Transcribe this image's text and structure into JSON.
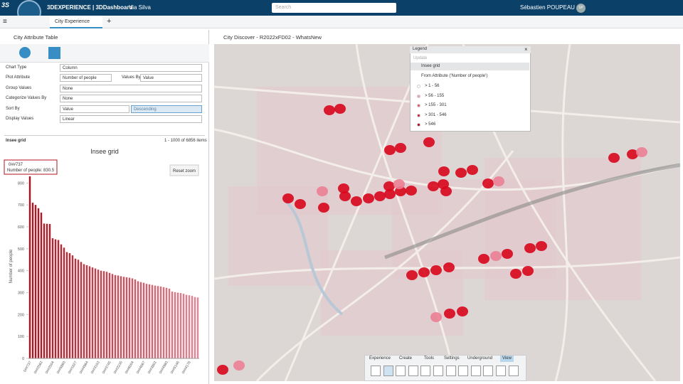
{
  "header": {
    "brand": "3DEXPERIENCE | 3DDashboard",
    "dashboard": "Via Silva",
    "search_placeholder": "Search",
    "user": "Sébastien POUPEAU",
    "avatar": "SP"
  },
  "tabs": [
    "City Experience"
  ],
  "left_panel": {
    "title": "City Attribute Table",
    "form": [
      {
        "label": "Chart Type",
        "value": "Column"
      },
      {
        "label": "Plot Attribute",
        "value": "Number of people",
        "extra_label": "Values By",
        "extra_value": "Value"
      },
      {
        "label": "Group Values",
        "value": "None"
      },
      {
        "label": "Categorize Values By",
        "value": "None"
      },
      {
        "label": "Sort By",
        "value": "Value",
        "extra_value": "Descending"
      },
      {
        "label": "Display Values",
        "value": "Linear"
      }
    ],
    "table_name": "Insee grid",
    "item_count": "1 - 1000 of 6856 items",
    "chart": {
      "type": "bar",
      "title": "Insee grid",
      "y_label": "Number of people",
      "tooltip": {
        "category": "0##737",
        "text": "Number of people: 830.5"
      },
      "reset_zoom": "Reset zoom",
      "categories": [
        "0##737",
        null,
        null,
        null,
        "0##2562",
        null,
        null,
        null,
        "0##2504",
        null,
        null,
        null,
        "0##5893",
        null,
        null,
        null,
        "0##1627",
        null,
        null,
        null,
        "0##4964",
        null,
        null,
        null,
        "0##3153",
        null,
        null,
        null,
        "0##3745",
        null,
        null,
        null,
        "0##2235",
        null,
        null,
        null,
        "0##6004",
        null,
        null,
        null,
        "0##4667",
        null,
        null,
        null,
        "0##3802",
        null,
        null,
        null,
        "0##4983",
        null,
        null,
        null,
        "0##5146",
        null,
        null,
        null,
        "0##4176",
        null,
        null,
        null
      ],
      "values": [
        830.5,
        710,
        700,
        685,
        665,
        615,
        614,
        613,
        548,
        543,
        540,
        520,
        505,
        485,
        480,
        470,
        455,
        450,
        440,
        430,
        425,
        420,
        415,
        410,
        405,
        400,
        398,
        395,
        390,
        385,
        380,
        378,
        375,
        372,
        370,
        368,
        365,
        360,
        352,
        348,
        345,
        340,
        338,
        335,
        332,
        330,
        328,
        325,
        322,
        318,
        305,
        302,
        300,
        298,
        295,
        290,
        288,
        285,
        280,
        278
      ],
      "ylim": [
        0,
        840
      ],
      "yticks": [
        0,
        100,
        200,
        300,
        400,
        500,
        600,
        700,
        800
      ],
      "color_start": "#b0101c",
      "color_end": "#e58595"
    }
  },
  "right_panel": {
    "title": "City Discover - R2022xFD02 - WhatsNew",
    "legend": {
      "title": "Legend",
      "update": "Update",
      "layer": "Insee grid",
      "attribute": "From Attribute ('Number of people')",
      "classes": [
        {
          "label": "> 1 - 56",
          "color": "#ffffff"
        },
        {
          "label": "> 56 - 155",
          "color": "#f2a0b0"
        },
        {
          "label": "> 155 - 301",
          "color": "#e45a6e"
        },
        {
          "label": "> 301 - 546",
          "color": "#cc2233"
        },
        {
          "label": "> 546",
          "color": "#b00010"
        }
      ]
    },
    "toolbar_tabs": [
      "Experience",
      "Create",
      "Tools",
      "Settings",
      "Underground",
      "View"
    ]
  }
}
